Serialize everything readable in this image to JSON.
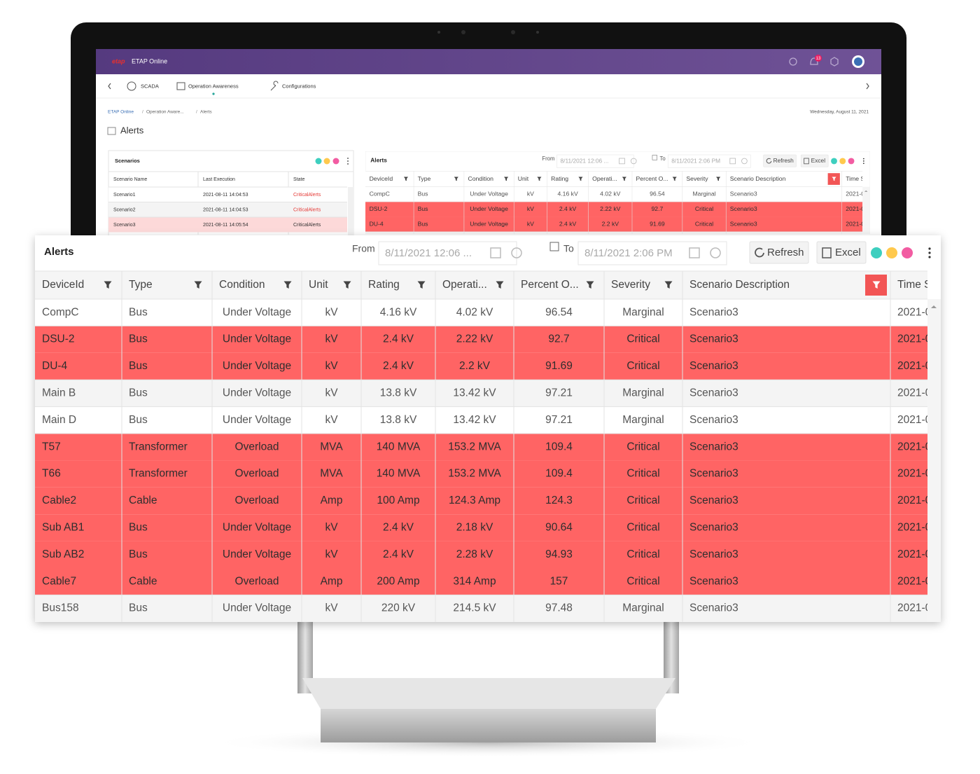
{
  "app": {
    "brand": "ETAP Online",
    "notifications": "13"
  },
  "nav": {
    "items": [
      "SCADA",
      "Operation Awareness",
      "Configurations"
    ]
  },
  "breadcrumb": [
    "ETAP Online",
    "Operation Aware...",
    "Alerts"
  ],
  "date": "Wednesday, August 11, 2021",
  "page_title": "Alerts",
  "scenarios": {
    "title": "Scenarios",
    "columns": [
      "Scenario Name",
      "Last Execution",
      "State"
    ],
    "rows": [
      [
        "Scenario1",
        "2021-08-11 14:04:53",
        "CriticalAlerts"
      ],
      [
        "Scenario2",
        "2021-08-11 14:04:53",
        "CriticalAlerts"
      ],
      [
        "Scenario3",
        "2021-08-11 14:05:54",
        "CriticalAlerts"
      ]
    ],
    "selected_row": 2,
    "state_color": "#e53935",
    "selected_color": "#fdd9d9"
  },
  "alerts": {
    "title": "Alerts",
    "from_label": "From",
    "from_value": "8/11/2021 12:06 ...",
    "to_label": "To",
    "to_value": "8/11/2021 2:06 PM",
    "refresh": "Refresh",
    "excel": "Excel",
    "highlight_color": "#ff6464",
    "highlighted_rows": [
      1,
      2,
      5,
      6,
      7,
      8,
      9,
      10
    ],
    "columns": [
      "DeviceId",
      "Type",
      "Condition",
      "Unit",
      "Rating",
      "Operati...",
      "Percent O...",
      "Severity",
      "Scenario Description",
      "Time S"
    ],
    "rows": [
      [
        "CompC",
        "Bus",
        "Under Voltage",
        "kV",
        "4.16 kV",
        "4.02 kV",
        "96.54",
        "Marginal",
        "Scenario3",
        "2021-0"
      ],
      [
        "DSU-2",
        "Bus",
        "Under Voltage",
        "kV",
        "2.4 kV",
        "2.22 kV",
        "92.7",
        "Critical",
        "Scenario3",
        "2021-0"
      ],
      [
        "DU-4",
        "Bus",
        "Under Voltage",
        "kV",
        "2.4 kV",
        "2.2 kV",
        "91.69",
        "Critical",
        "Scenario3",
        "2021-0"
      ],
      [
        "Main B",
        "Bus",
        "Under Voltage",
        "kV",
        "13.8 kV",
        "13.42 kV",
        "97.21",
        "Marginal",
        "Scenario3",
        "2021-0"
      ],
      [
        "Main D",
        "Bus",
        "Under Voltage",
        "kV",
        "13.8 kV",
        "13.42 kV",
        "97.21",
        "Marginal",
        "Scenario3",
        "2021-0"
      ],
      [
        "T57",
        "Transformer",
        "Overload",
        "MVA",
        "140 MVA",
        "153.2 MVA",
        "109.4",
        "Critical",
        "Scenario3",
        "2021-0"
      ],
      [
        "T66",
        "Transformer",
        "Overload",
        "MVA",
        "140 MVA",
        "153.2 MVA",
        "109.4",
        "Critical",
        "Scenario3",
        "2021-0"
      ],
      [
        "Cable2",
        "Cable",
        "Overload",
        "Amp",
        "100 Amp",
        "124.3 Amp",
        "124.3",
        "Critical",
        "Scenario3",
        "2021-0"
      ],
      [
        "Sub AB1",
        "Bus",
        "Under Voltage",
        "kV",
        "2.4 kV",
        "2.18 kV",
        "90.64",
        "Critical",
        "Scenario3",
        "2021-0"
      ],
      [
        "Sub AB2",
        "Bus",
        "Under Voltage",
        "kV",
        "2.4 kV",
        "2.28 kV",
        "94.93",
        "Critical",
        "Scenario3",
        "2021-0"
      ],
      [
        "Cable7",
        "Cable",
        "Overload",
        "Amp",
        "200 Amp",
        "314 Amp",
        "157",
        "Critical",
        "Scenario3",
        "2021-0"
      ],
      [
        "Bus158",
        "Bus",
        "Under Voltage",
        "kV",
        "220 kV",
        "214.5 kV",
        "97.48",
        "Marginal",
        "Scenario3",
        "2021-0"
      ]
    ]
  }
}
